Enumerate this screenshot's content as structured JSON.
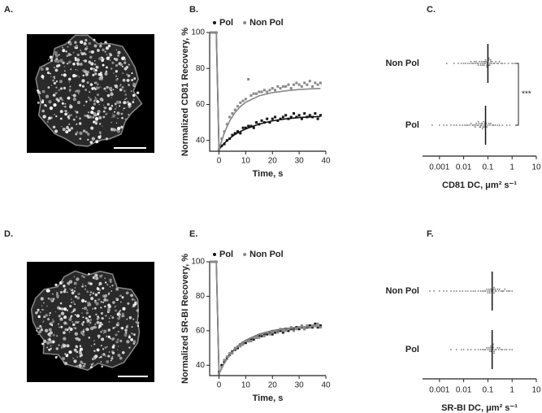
{
  "image_panels": [
    {
      "label": "A."
    },
    {
      "label": "D."
    }
  ],
  "chart_data": [
    {
      "type": "frap",
      "panel_label": "B.",
      "x_label": "Time, s",
      "y_label": "Normalized CD81 Recovery, %",
      "xlim": [
        -3.5,
        40
      ],
      "xticks": [
        0,
        10,
        20,
        30,
        40
      ],
      "ylim": [
        34,
        100
      ],
      "yticks": [
        40,
        60,
        80,
        100
      ],
      "x": [
        -3,
        -2,
        -1,
        0,
        1,
        2,
        3,
        4,
        5,
        6,
        7,
        8,
        9,
        10,
        11,
        12,
        13,
        14,
        15,
        16,
        17,
        18,
        19,
        20,
        21,
        22,
        23,
        24,
        25,
        26,
        27,
        28,
        29,
        30,
        31,
        32,
        33,
        34,
        35,
        36,
        37,
        38
      ],
      "fit_x": [
        -3,
        -1,
        0,
        2,
        4,
        6,
        8,
        10,
        15,
        20,
        25,
        30,
        35,
        38
      ],
      "series": [
        {
          "name": "Pol",
          "color": "#111111",
          "values": [
            100,
            100,
            100,
            35,
            37,
            38,
            40,
            41,
            43,
            44,
            45,
            44,
            47,
            47,
            48,
            48,
            47,
            50,
            49,
            51,
            50,
            52,
            50,
            52,
            53,
            51,
            52,
            53,
            54,
            52,
            53,
            55,
            53,
            54,
            52,
            55,
            53,
            54,
            53,
            55,
            52,
            54
          ],
          "fit": [
            100,
            100,
            35,
            38.5,
            41.2,
            43.3,
            45,
            46.4,
            49.1,
            50.9,
            52,
            52.7,
            53.1,
            53.3
          ]
        },
        {
          "name": "Non Pol",
          "color": "#888888",
          "values": [
            100,
            100,
            100,
            35,
            41,
            45,
            49,
            53,
            55,
            57,
            59,
            61,
            62,
            63,
            74,
            65,
            66,
            66,
            67,
            67,
            68,
            67,
            68,
            69,
            68,
            70,
            69,
            70,
            70,
            71,
            69,
            71,
            72,
            71,
            70,
            72,
            71,
            73,
            70,
            72,
            71,
            72
          ],
          "fit": [
            100,
            100,
            35,
            44.3,
            50.9,
            55.5,
            58.8,
            61.2,
            64.8,
            66.6,
            67.6,
            68.3,
            68.7,
            68.9
          ]
        }
      ]
    },
    {
      "type": "dotplot",
      "panel_label": "C.",
      "x_label": "CD81 DC, μm² s⁻¹",
      "xscale": "log",
      "xlim": [
        0.0002,
        10
      ],
      "xticks": [
        0.001,
        0.01,
        0.1,
        1,
        10
      ],
      "color": "#777777",
      "annotation": "***",
      "categories": [
        "Non Pol",
        "Pol"
      ],
      "medians": [
        0.1,
        0.08
      ],
      "values": [
        [
          0.002,
          0.004,
          0.006,
          0.008,
          0.01,
          0.012,
          0.015,
          0.018,
          0.02,
          0.022,
          0.025,
          0.028,
          0.03,
          0.033,
          0.036,
          0.04,
          0.045,
          0.05,
          0.055,
          0.06,
          0.065,
          0.07,
          0.075,
          0.08,
          0.085,
          0.09,
          0.095,
          0.1,
          0.105,
          0.11,
          0.12,
          0.13,
          0.14,
          0.15,
          0.17,
          0.19,
          0.21,
          0.24,
          0.27,
          0.3,
          0.35,
          0.4,
          0.5,
          0.7,
          1.0,
          1.2,
          0.06,
          0.07,
          0.08,
          0.09,
          0.1,
          0.11,
          0.12,
          0.13,
          0.05,
          0.04
        ],
        [
          0.0005,
          0.001,
          0.0015,
          0.002,
          0.003,
          0.004,
          0.005,
          0.007,
          0.009,
          0.011,
          0.013,
          0.015,
          0.018,
          0.02,
          0.023,
          0.026,
          0.03,
          0.033,
          0.036,
          0.04,
          0.043,
          0.046,
          0.05,
          0.053,
          0.056,
          0.06,
          0.063,
          0.066,
          0.07,
          0.075,
          0.08,
          0.085,
          0.09,
          0.1,
          0.11,
          0.12,
          0.13,
          0.15,
          0.17,
          0.2,
          0.25,
          0.3,
          0.4,
          0.6,
          0.8,
          0.05,
          0.06,
          0.07,
          0.08,
          0.04,
          0.03
        ]
      ]
    },
    {
      "type": "frap",
      "panel_label": "E.",
      "x_label": "Time, s",
      "y_label": "Normalized SR-BI Recovery, %",
      "xlim": [
        -3.5,
        40
      ],
      "xticks": [
        0,
        10,
        20,
        30,
        40
      ],
      "ylim": [
        34,
        100
      ],
      "yticks": [
        40,
        60,
        80,
        100
      ],
      "x": [
        -3,
        -2,
        -1,
        0,
        1,
        2,
        3,
        4,
        5,
        6,
        7,
        8,
        9,
        10,
        11,
        12,
        13,
        14,
        15,
        16,
        17,
        18,
        19,
        20,
        21,
        22,
        23,
        24,
        25,
        26,
        27,
        28,
        29,
        30,
        31,
        32,
        33,
        34,
        35,
        36,
        37,
        38
      ],
      "fit_x": [
        -3,
        -1,
        0,
        2,
        4,
        6,
        8,
        10,
        15,
        20,
        25,
        30,
        35,
        38
      ],
      "series": [
        {
          "name": "Pol",
          "color": "#111111",
          "values": [
            100,
            100,
            100,
            36,
            40,
            42,
            44,
            46,
            48,
            49,
            50,
            52,
            53,
            53,
            54,
            55,
            55,
            56,
            57,
            57,
            58,
            58,
            59,
            58,
            59,
            60,
            60,
            59,
            61,
            60,
            61,
            61,
            62,
            61,
            62,
            61,
            62,
            63,
            62,
            64,
            62,
            63
          ],
          "fit": [
            100,
            100,
            35,
            41.5,
            46,
            49.5,
            52.3,
            54.4,
            58,
            60,
            61.3,
            62,
            62.5,
            62.7
          ]
        },
        {
          "name": "Non Pol",
          "color": "#888888",
          "values": [
            100,
            100,
            100,
            35,
            39,
            43,
            45,
            47,
            47,
            50,
            51,
            51,
            52,
            54,
            54,
            54,
            56,
            56,
            56,
            58,
            57,
            59,
            58,
            59,
            60,
            59,
            61,
            60,
            60,
            61,
            62,
            60,
            61,
            62,
            63,
            61,
            63,
            62,
            63,
            63,
            64,
            62
          ],
          "fit": [
            100,
            100,
            35,
            41.3,
            45.8,
            49.3,
            52.1,
            54.2,
            57.8,
            59.8,
            61.1,
            61.9,
            62.4,
            62.6
          ]
        }
      ]
    },
    {
      "type": "dotplot",
      "panel_label": "F.",
      "x_label": "SR-BI DC, μm² s⁻¹",
      "xscale": "log",
      "xlim": [
        0.0002,
        10
      ],
      "xticks": [
        0.001,
        0.01,
        0.1,
        1,
        10
      ],
      "color": "#777777",
      "categories": [
        "Non Pol",
        "Pol"
      ],
      "medians": [
        0.15,
        0.15
      ],
      "values": [
        [
          0.0004,
          0.0006,
          0.001,
          0.0015,
          0.002,
          0.003,
          0.004,
          0.005,
          0.007,
          0.009,
          0.012,
          0.015,
          0.02,
          0.025,
          0.03,
          0.04,
          0.05,
          0.06,
          0.07,
          0.08,
          0.09,
          0.1,
          0.11,
          0.12,
          0.13,
          0.14,
          0.15,
          0.16,
          0.17,
          0.18,
          0.2,
          0.22,
          0.25,
          0.28,
          0.3,
          0.35,
          0.4,
          0.45,
          0.5,
          0.6,
          0.7,
          0.8,
          1.0,
          0.12,
          0.15,
          0.18,
          0.2,
          0.1
        ],
        [
          0.003,
          0.005,
          0.008,
          0.01,
          0.015,
          0.02,
          0.03,
          0.04,
          0.05,
          0.06,
          0.07,
          0.08,
          0.09,
          0.1,
          0.11,
          0.12,
          0.13,
          0.14,
          0.15,
          0.16,
          0.17,
          0.18,
          0.2,
          0.22,
          0.25,
          0.28,
          0.3,
          0.35,
          0.4,
          0.5,
          0.6,
          0.8,
          1.0,
          0.12,
          0.14,
          0.15,
          0.16,
          0.18,
          0.13,
          0.17
        ]
      ]
    }
  ]
}
